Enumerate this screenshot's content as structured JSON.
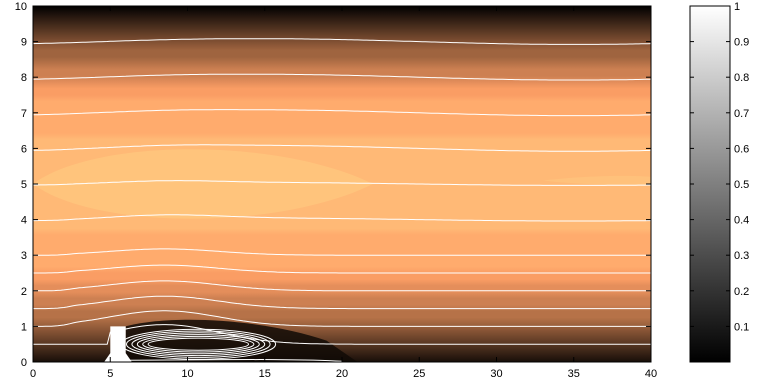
{
  "chart_data": [
    {
      "type": "heatmap",
      "subtype": "filled-contour-with-streamlines",
      "title": "",
      "xlabel": "",
      "ylabel": "",
      "xlim": [
        0,
        40
      ],
      "ylim": [
        0,
        10
      ],
      "xticks": [
        0,
        5,
        10,
        15,
        20,
        25,
        30,
        35,
        40
      ],
      "yticks": [
        0,
        1,
        2,
        3,
        4,
        5,
        6,
        7,
        8,
        9,
        10
      ],
      "colormap": "copper",
      "grid": false,
      "obstacle": {
        "x": [
          5.0,
          6.0
        ],
        "y": [
          0,
          1.0
        ]
      },
      "streamline_y_levels": [
        0.5,
        1.0,
        1.5,
        2.0,
        2.5,
        3.0,
        4.0,
        5.0,
        6.0,
        7.0,
        8.0,
        9.0
      ],
      "recirculation_zone": {
        "x": [
          6.3,
          16.3
        ],
        "y": [
          0.05,
          0.95
        ]
      }
    },
    {
      "type": "colorbar",
      "colormap": "gray",
      "range": [
        0,
        1
      ],
      "ticks": [
        0.1,
        0.2,
        0.3,
        0.4,
        0.5,
        0.6,
        0.7,
        0.8,
        0.9,
        1
      ]
    }
  ],
  "colors": {
    "background": "#ffffff",
    "streamline": "#ffffff",
    "axis": "#000000",
    "copper_peak": "#ffc080",
    "copper_dark": "#000000"
  }
}
